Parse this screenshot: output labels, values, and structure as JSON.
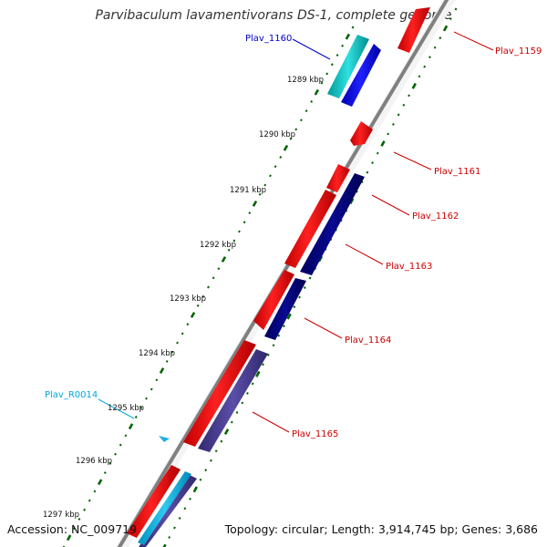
{
  "title": "Parvibaculum lavamentivorans DS-1, complete genome",
  "footer": {
    "accession": "Accession: NC_009719",
    "summary": "Topology: circular; Length: 3,914,745 bp; Genes: 3,686"
  },
  "colors": {
    "cds_forward": "#ff0000",
    "cds_reverse_dark": "#000080",
    "cds_reverse_purple": "#483d8b",
    "highlight_cyan": "#00c8c8",
    "highlight_blue": "#0000ff",
    "rna": "#00b0e0",
    "tick": "#006400",
    "backbone": "#808080",
    "label_red": "#cc0000",
    "label_blue": "#0000cc",
    "label_cyan": "#00a8d8"
  },
  "scale_labels": [
    "1289 kbp",
    "1290 kbp",
    "1291 kbp",
    "1292 kbp",
    "1293 kbp",
    "1294 kbp",
    "1295 kbp",
    "1296 kbp",
    "1297 kbp"
  ],
  "gene_labels": [
    "Plav_1159",
    "Plav_1160",
    "Plav_1161",
    "Plav_1162",
    "Plav_1163",
    "Plav_1164",
    "Plav_1165",
    "Plav_R0014"
  ]
}
